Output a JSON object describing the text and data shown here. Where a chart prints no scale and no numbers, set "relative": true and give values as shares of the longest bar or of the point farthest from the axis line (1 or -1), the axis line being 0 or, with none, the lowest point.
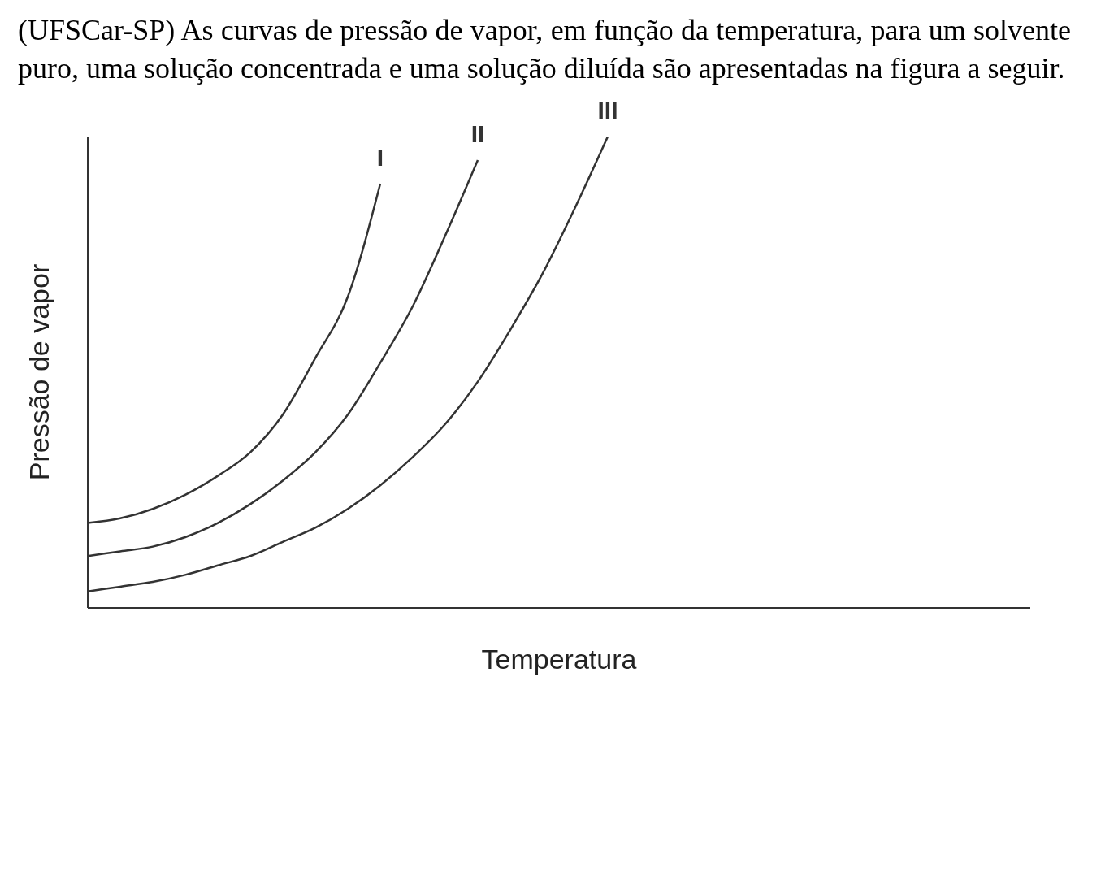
{
  "chart_data": {
    "type": "line",
    "title": "(UFSCar-SP) As curvas de pressão de vapor, em função da temperatura, para um solvente puro, uma solução concentrada e uma solução diluída são apresentadas na figura a seguir.",
    "xlabel": "Temperatura",
    "ylabel": "Pressão de vapor",
    "relative": true,
    "grid": false,
    "legend": false,
    "marker": "none",
    "line_style": "solid",
    "categories": [
      null,
      null,
      null,
      null,
      null,
      null,
      null,
      null,
      null,
      null,
      null,
      null,
      null,
      null,
      null,
      null,
      null,
      null,
      null,
      null,
      null,
      null,
      null,
      null,
      null,
      null,
      null,
      null,
      null,
      null
    ],
    "series": [
      {
        "name": "I",
        "color": "#333333",
        "values": [
          0.18,
          0.19,
          0.21,
          0.24,
          0.28,
          0.33,
          0.41,
          0.53,
          0.66,
          0.9,
          null,
          null,
          null,
          null,
          null,
          null,
          null,
          null,
          null,
          null,
          null,
          null,
          null,
          null,
          null,
          null,
          null,
          null,
          null,
          null
        ]
      },
      {
        "name": "II",
        "color": "#333333",
        "values": [
          0.11,
          0.12,
          0.13,
          0.15,
          0.18,
          0.22,
          0.27,
          0.33,
          0.41,
          0.52,
          0.64,
          0.79,
          0.95,
          null,
          null,
          null,
          null,
          null,
          null,
          null,
          null,
          null,
          null,
          null,
          null,
          null,
          null,
          null,
          null,
          null
        ]
      },
      {
        "name": "III",
        "color": "#333333",
        "values": [
          0.035,
          0.045,
          0.055,
          0.07,
          0.09,
          0.11,
          0.14,
          0.17,
          0.21,
          0.26,
          0.32,
          0.39,
          0.48,
          0.59,
          0.71,
          0.85,
          1,
          null,
          null,
          null,
          null,
          null,
          null,
          null,
          null,
          null,
          null,
          null,
          null,
          null
        ]
      }
    ]
  }
}
